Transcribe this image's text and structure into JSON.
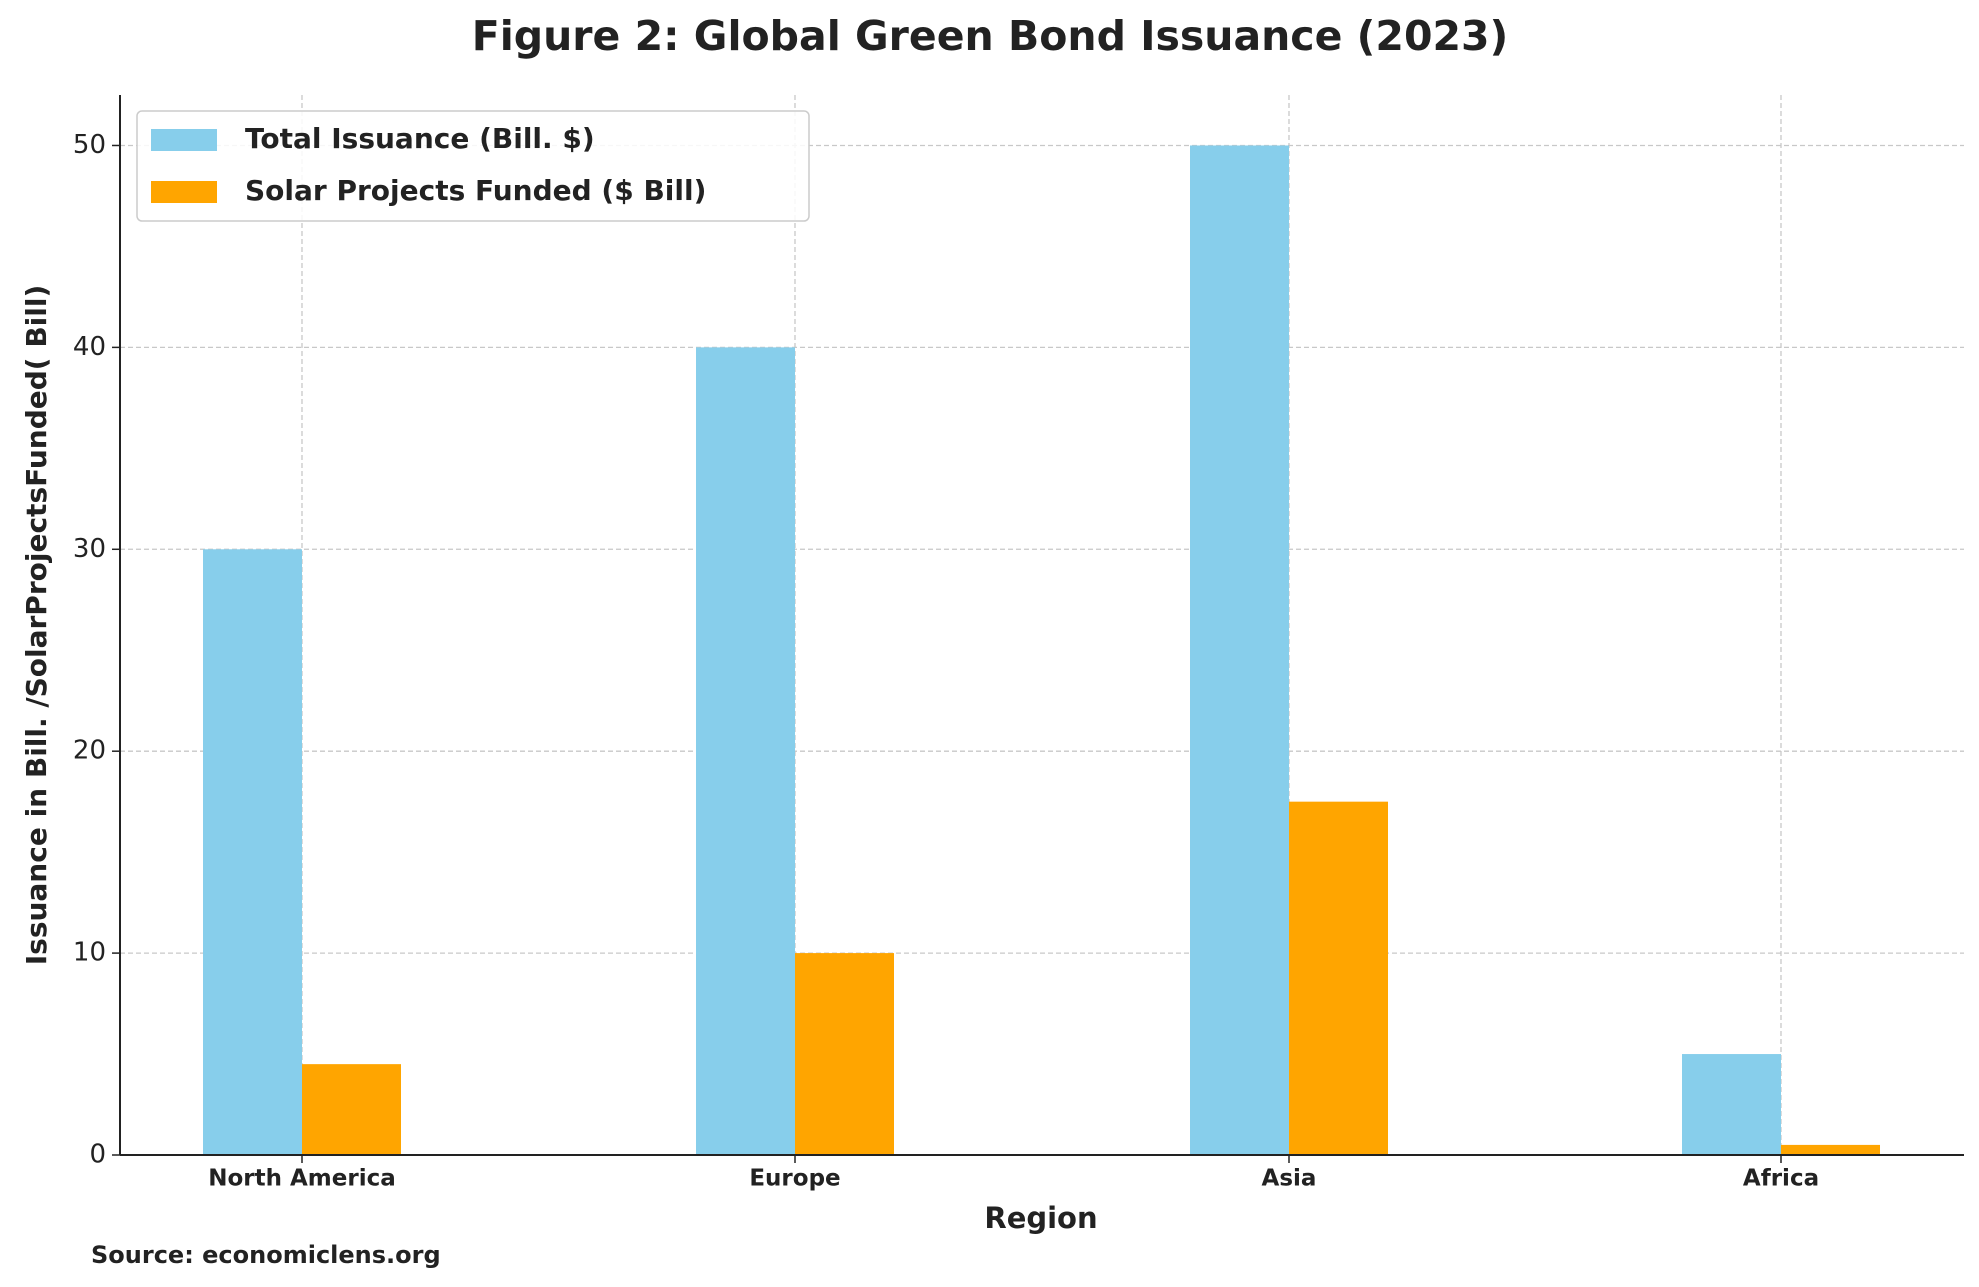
{
  "chart_data": {
    "type": "bar",
    "title": "Figure 2: Global Green Bond Issuance (2023)",
    "x_label": "Region",
    "y_label": "Issuance in Bill. /SolarProjectsFunded( Bill)",
    "source": "Source: economiclens.org",
    "categories": [
      "North America",
      "Europe",
      "Asia",
      "Africa"
    ],
    "series": [
      {
        "name": "Total Issuance (Bill. $)",
        "color": "#87ceeb",
        "values": [
          30,
          40,
          50,
          5
        ]
      },
      {
        "name": "Solar Projects Funded ($ Bill)",
        "color": "#ffa500",
        "values": [
          4.5,
          10,
          17.5,
          0.5
        ]
      }
    ],
    "ylim": [
      0,
      52.5
    ],
    "yticks": [
      0,
      10,
      20,
      30,
      40,
      50
    ],
    "grid": true,
    "legend": "upper left"
  }
}
